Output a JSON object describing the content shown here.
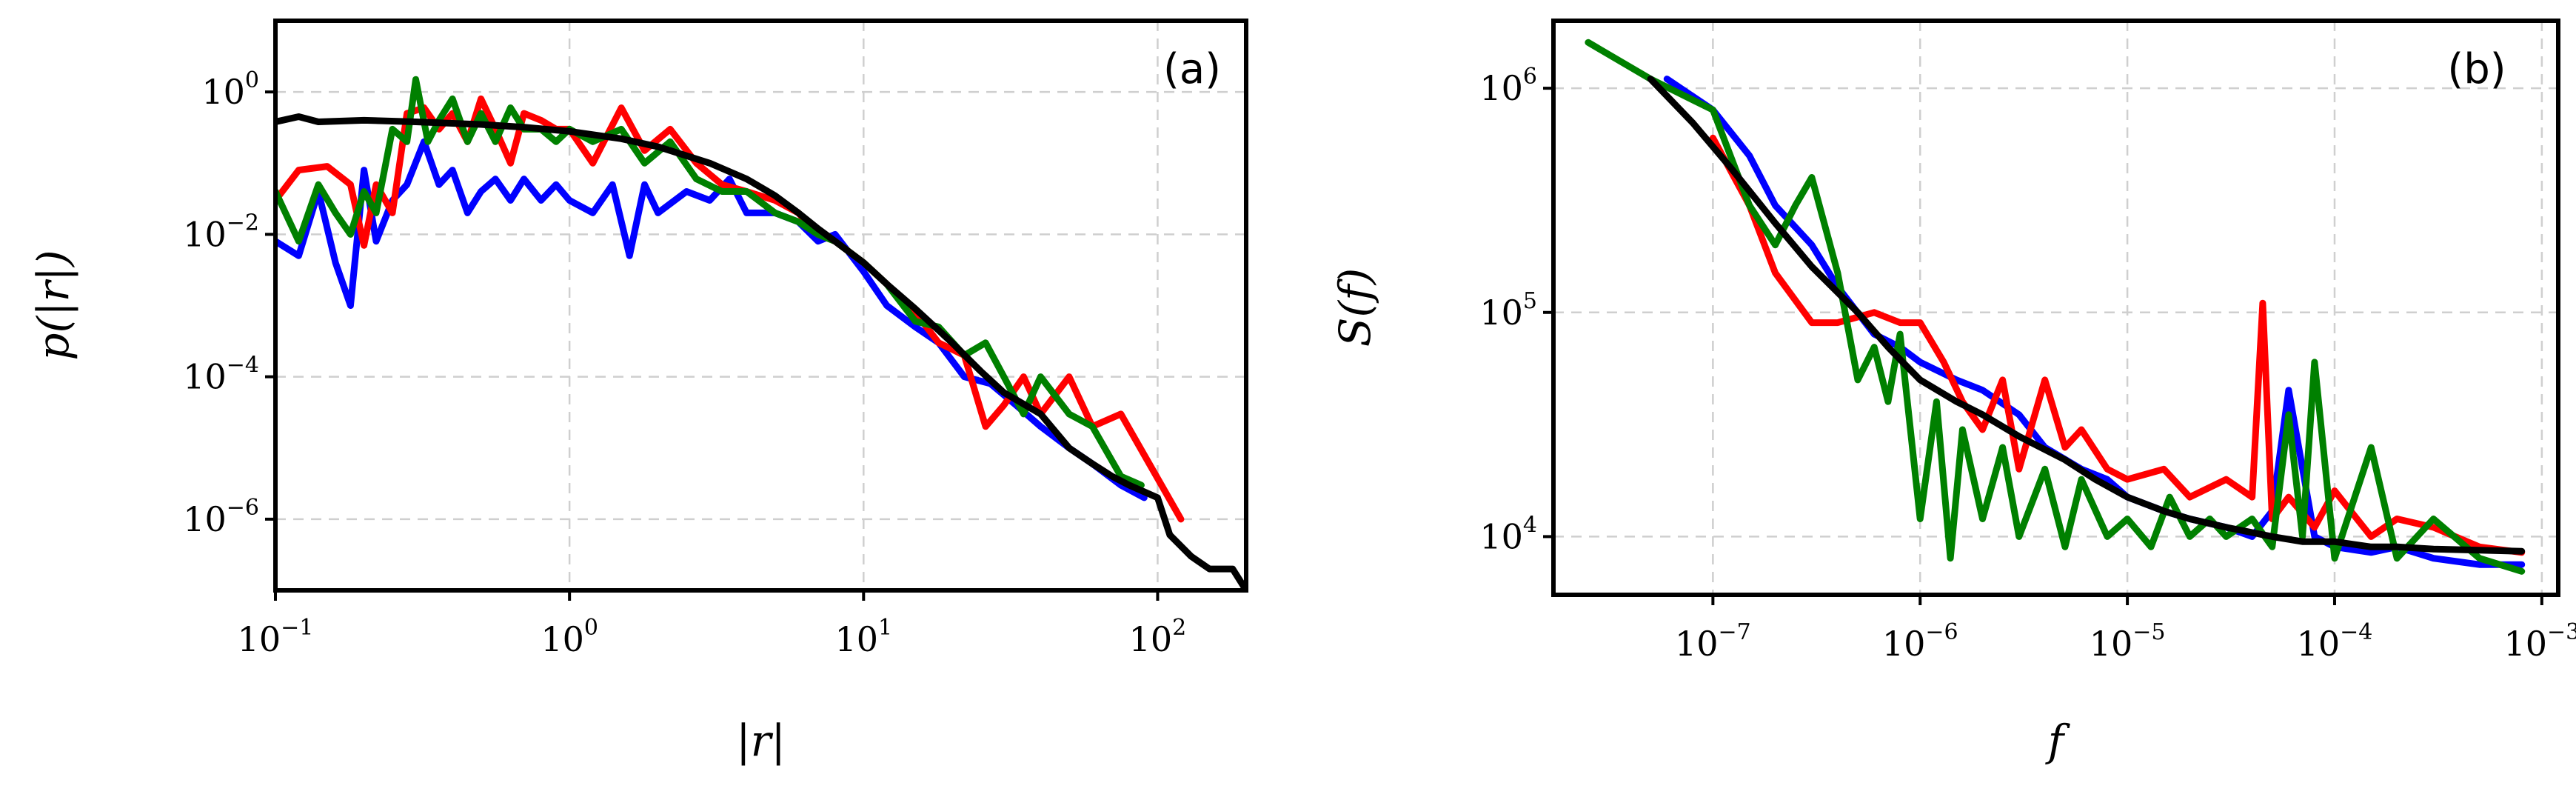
{
  "colors": {
    "blue": "#0000ff",
    "red": "#ff0000",
    "green": "#008000",
    "black": "#000000"
  },
  "chart_data": [
    {
      "type": "line",
      "panel": "(a)",
      "xlabel": "|r|",
      "ylabel": "p(|r|)",
      "xscale": "log",
      "yscale": "log",
      "xlim": [
        0.1,
        200
      ],
      "ylim": [
        1e-07,
        10
      ],
      "xticks": [
        {
          "value": 0.1,
          "base": "10",
          "exp": "−1"
        },
        {
          "value": 1,
          "base": "10",
          "exp": "0"
        },
        {
          "value": 10,
          "base": "10",
          "exp": "1"
        },
        {
          "value": 100,
          "base": "10",
          "exp": "2"
        }
      ],
      "yticks": [
        {
          "value": 1,
          "base": "10",
          "exp": "0"
        },
        {
          "value": 0.01,
          "base": "10",
          "exp": "−2"
        },
        {
          "value": 0.0001,
          "base": "10",
          "exp": "−4"
        },
        {
          "value": 1e-06,
          "base": "10",
          "exp": "−6"
        }
      ],
      "grid": true,
      "series": [
        {
          "name": "blue",
          "color": "#0000ff",
          "x": [
            0.1,
            0.12,
            0.14,
            0.16,
            0.18,
            0.2,
            0.22,
            0.25,
            0.28,
            0.32,
            0.36,
            0.4,
            0.45,
            0.5,
            0.56,
            0.63,
            0.7,
            0.8,
            0.9,
            1.0,
            1.2,
            1.4,
            1.6,
            1.8,
            2.0,
            2.5,
            3.0,
            3.5,
            4.0,
            5.0,
            6.0,
            7.0,
            8.0,
            10,
            12,
            15,
            18,
            22,
            27,
            33,
            40,
            50,
            60,
            75,
            90
          ],
          "y": [
            0.008,
            0.005,
            0.04,
            0.004,
            0.001,
            0.08,
            0.008,
            0.03,
            0.05,
            0.2,
            0.05,
            0.08,
            0.02,
            0.04,
            0.06,
            0.03,
            0.06,
            0.03,
            0.05,
            0.03,
            0.02,
            0.05,
            0.005,
            0.05,
            0.02,
            0.04,
            0.03,
            0.06,
            0.02,
            0.02,
            0.015,
            0.008,
            0.01,
            0.003,
            0.001,
            0.0005,
            0.0003,
            0.0001,
            8e-05,
            4e-05,
            2e-05,
            1e-05,
            6e-06,
            3e-06,
            2e-06
          ]
        },
        {
          "name": "red",
          "color": "#ff0000",
          "x": [
            0.1,
            0.12,
            0.15,
            0.18,
            0.2,
            0.22,
            0.25,
            0.28,
            0.32,
            0.36,
            0.4,
            0.45,
            0.5,
            0.56,
            0.63,
            0.7,
            0.8,
            0.9,
            1.0,
            1.2,
            1.5,
            1.8,
            2.2,
            2.7,
            3.3,
            4.0,
            5.0,
            6.0,
            7.0,
            8.0,
            10,
            12,
            15,
            18,
            22,
            26,
            30,
            35,
            40,
            50,
            60,
            75,
            90,
            120
          ],
          "y": [
            0.03,
            0.08,
            0.09,
            0.05,
            0.007,
            0.05,
            0.02,
            0.5,
            0.6,
            0.3,
            0.5,
            0.2,
            0.8,
            0.3,
            0.1,
            0.5,
            0.4,
            0.3,
            0.3,
            0.1,
            0.6,
            0.15,
            0.3,
            0.1,
            0.05,
            0.04,
            0.03,
            0.02,
            0.01,
            0.008,
            0.004,
            0.002,
            0.0008,
            0.0003,
            0.0002,
            2e-05,
            4e-05,
            0.0001,
            3e-05,
            0.0001,
            2e-05,
            3e-05,
            8e-06,
            1e-06
          ]
        },
        {
          "name": "green",
          "color": "#008000",
          "x": [
            0.1,
            0.12,
            0.14,
            0.16,
            0.18,
            0.2,
            0.22,
            0.25,
            0.28,
            0.3,
            0.33,
            0.36,
            0.4,
            0.45,
            0.5,
            0.56,
            0.63,
            0.7,
            0.8,
            0.9,
            1.0,
            1.2,
            1.5,
            1.8,
            2.2,
            2.7,
            3.3,
            4.0,
            5.0,
            6.0,
            7.0,
            8.0,
            10,
            12,
            15,
            18,
            22,
            26,
            30,
            35,
            40,
            50,
            60,
            75,
            88
          ],
          "y": [
            0.04,
            0.008,
            0.05,
            0.02,
            0.01,
            0.04,
            0.02,
            0.3,
            0.2,
            1.5,
            0.2,
            0.4,
            0.8,
            0.2,
            0.5,
            0.2,
            0.6,
            0.3,
            0.3,
            0.2,
            0.3,
            0.2,
            0.3,
            0.1,
            0.2,
            0.06,
            0.04,
            0.04,
            0.02,
            0.015,
            0.01,
            0.008,
            0.004,
            0.002,
            0.0006,
            0.0005,
            0.0002,
            0.0003,
            0.0001,
            3e-05,
            0.0001,
            3e-05,
            2e-05,
            4e-06,
            3e-06
          ]
        },
        {
          "name": "black",
          "color": "#000000",
          "x": [
            0.1,
            0.12,
            0.14,
            0.2,
            0.3,
            0.5,
            0.7,
            1.0,
            1.5,
            2.0,
            3.0,
            4.0,
            5.0,
            6.0,
            7.0,
            8.0,
            10,
            12,
            15,
            20,
            25,
            30,
            40,
            50,
            60,
            70,
            80,
            100,
            110,
            130,
            150,
            180,
            200
          ],
          "y": [
            0.38,
            0.45,
            0.38,
            0.4,
            0.38,
            0.35,
            0.32,
            0.28,
            0.22,
            0.17,
            0.1,
            0.06,
            0.035,
            0.02,
            0.012,
            0.008,
            0.004,
            0.002,
            0.0009,
            0.0003,
            0.00012,
            6e-05,
            3e-05,
            1e-05,
            6e-06,
            4e-06,
            3e-06,
            2e-06,
            6e-07,
            3e-07,
            2e-07,
            2e-07,
            1e-07
          ]
        }
      ]
    },
    {
      "type": "line",
      "panel": "(b)",
      "xlabel": "f",
      "ylabel": "S(f)",
      "xscale": "log",
      "yscale": "log",
      "xlim": [
        1.7e-08,
        0.0012
      ],
      "ylim": [
        5500.0,
        2000000.0
      ],
      "xticks": [
        {
          "value": 1e-07,
          "base": "10",
          "exp": "−7"
        },
        {
          "value": 1e-06,
          "base": "10",
          "exp": "−6"
        },
        {
          "value": 1e-05,
          "base": "10",
          "exp": "−5"
        },
        {
          "value": 0.0001,
          "base": "10",
          "exp": "−4"
        },
        {
          "value": 0.001,
          "base": "10",
          "exp": "−3"
        }
      ],
      "yticks": [
        {
          "value": 1000000,
          "base": "10",
          "exp": "6"
        },
        {
          "value": 100000,
          "base": "10",
          "exp": "5"
        },
        {
          "value": 10000,
          "base": "10",
          "exp": "4"
        }
      ],
      "grid": true,
      "series": [
        {
          "name": "blue",
          "color": "#0000ff",
          "x": [
            6e-08,
            1e-07,
            1.5e-07,
            2e-07,
            3e-07,
            4e-07,
            6e-07,
            8e-07,
            1e-06,
            1.5e-06,
            2e-06,
            3e-06,
            4e-06,
            6e-06,
            8e-06,
            1e-05,
            1.5e-05,
            2e-05,
            3e-05,
            4e-05,
            5e-05,
            6e-05,
            8e-05,
            0.0001,
            0.00015,
            0.0002,
            0.0003,
            0.0005,
            0.0008
          ],
          "y": [
            1100000.0,
            800000.0,
            500000.0,
            300000.0,
            200000.0,
            130000.0,
            80000.0,
            70000.0,
            60000.0,
            50000.0,
            45000.0,
            35000.0,
            25000.0,
            20000.0,
            18000.0,
            15000.0,
            13000.0,
            12000.0,
            11000.0,
            10000.0,
            13000.0,
            45000.0,
            10000.0,
            9000.0,
            8500.0,
            9000.0,
            8000.0,
            7500.0,
            7500.0
          ]
        },
        {
          "name": "red",
          "color": "#ff0000",
          "x": [
            1e-07,
            1.5e-07,
            2e-07,
            3e-07,
            4e-07,
            6e-07,
            8e-07,
            1e-06,
            1.3e-06,
            1.6e-06,
            2e-06,
            2.5e-06,
            3e-06,
            4e-06,
            5e-06,
            6e-06,
            8e-06,
            1e-05,
            1.5e-05,
            2e-05,
            3e-05,
            4e-05,
            4.5e-05,
            5e-05,
            6e-05,
            8e-05,
            0.0001,
            0.00015,
            0.0002,
            0.0003,
            0.0005,
            0.0008
          ],
          "y": [
            600000.0,
            300000.0,
            150000.0,
            90000.0,
            90000.0,
            100000.0,
            90000.0,
            90000.0,
            60000.0,
            40000.0,
            30000.0,
            50000.0,
            20000.0,
            50000.0,
            25000.0,
            30000.0,
            20000.0,
            18000.0,
            20000.0,
            15000.0,
            18000.0,
            15000.0,
            110000.0,
            12000.0,
            15000.0,
            11000.0,
            16000.0,
            10000.0,
            12000.0,
            11000.0,
            9000.0,
            8500.0
          ]
        },
        {
          "name": "green",
          "color": "#008000",
          "x": [
            2.5e-08,
            5e-08,
            1e-07,
            1.5e-07,
            2e-07,
            2.5e-07,
            3e-07,
            4e-07,
            5e-07,
            6e-07,
            7e-07,
            8e-07,
            1e-06,
            1.2e-06,
            1.4e-06,
            1.6e-06,
            2e-06,
            2.5e-06,
            3e-06,
            4e-06,
            5e-06,
            6e-06,
            8e-06,
            1e-05,
            1.3e-05,
            1.6e-05,
            2e-05,
            2.5e-05,
            3e-05,
            4e-05,
            5e-05,
            6e-05,
            7e-05,
            8e-05,
            0.0001,
            0.00015,
            0.0002,
            0.0003,
            0.0005,
            0.0008
          ],
          "y": [
            1600000.0,
            1100000.0,
            800000.0,
            300000.0,
            200000.0,
            300000.0,
            400000.0,
            150000.0,
            50000.0,
            70000.0,
            40000.0,
            80000.0,
            12000.0,
            40000.0,
            8000.0,
            30000.0,
            12000.0,
            25000.0,
            10000.0,
            20000.0,
            9000.0,
            18000.0,
            10000.0,
            12000.0,
            9000.0,
            15000.0,
            10000.0,
            12000.0,
            10000.0,
            12000.0,
            9000.0,
            35000.0,
            10000.0,
            60000.0,
            8000.0,
            25000.0,
            8000.0,
            12000.0,
            8000.0,
            7000.0
          ]
        },
        {
          "name": "black",
          "color": "#000000",
          "x": [
            5e-08,
            8e-08,
            1.2e-07,
            2e-07,
            3e-07,
            5e-07,
            7e-07,
            1e-06,
            1.5e-06,
            2e-06,
            3e-06,
            5e-06,
            7e-06,
            1e-05,
            1.5e-05,
            2e-05,
            3e-05,
            5e-05,
            7e-05,
            0.0001,
            0.00015,
            0.0002,
            0.0003,
            0.0005,
            0.0008
          ],
          "y": [
            1100000.0,
            700000.0,
            450000.0,
            250000.0,
            160000.0,
            100000.0,
            70000.0,
            50000.0,
            40000.0,
            35000.0,
            28000.0,
            22000.0,
            18000.0,
            15000.0,
            13000.0,
            12000.0,
            11000.0,
            10000.0,
            9500.0,
            9500.0,
            9000.0,
            9000.0,
            8800.0,
            8700.0,
            8600.0
          ]
        }
      ]
    }
  ]
}
